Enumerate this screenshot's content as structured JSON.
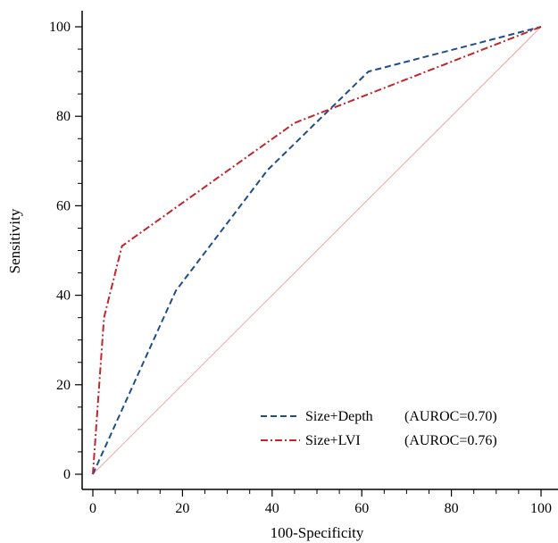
{
  "chart_data": {
    "type": "line",
    "title": "",
    "xlabel": "100-Specificity",
    "ylabel": "Sensitivity",
    "xlim": [
      0,
      100
    ],
    "ylim": [
      0,
      100
    ],
    "xticks": [
      "0",
      "20",
      "40",
      "60",
      "80",
      "100"
    ],
    "yticks": [
      "0",
      "20",
      "40",
      "60",
      "80",
      "100"
    ],
    "grid": false,
    "legend_position": "bottom-right",
    "series": [
      {
        "name": "Size+Depth",
        "auroc_label": "(AUROC=0.70)",
        "color": "#1f4e8c",
        "line_style": "dashed",
        "x": [
          0,
          18.5,
          39,
          61.5,
          100
        ],
        "y": [
          0,
          41,
          68,
          90,
          100
        ]
      },
      {
        "name": "Size+LVI",
        "auroc_label": "(AUROC=0.76)",
        "color": "#c0262d",
        "line_style": "dash-dot",
        "x": [
          0,
          2.5,
          6.5,
          45,
          100
        ],
        "y": [
          0,
          35,
          51,
          78.5,
          100
        ]
      }
    ],
    "reference_line": {
      "color": "#e8a0a0",
      "x": [
        0,
        100
      ],
      "y": [
        0,
        100
      ]
    }
  }
}
